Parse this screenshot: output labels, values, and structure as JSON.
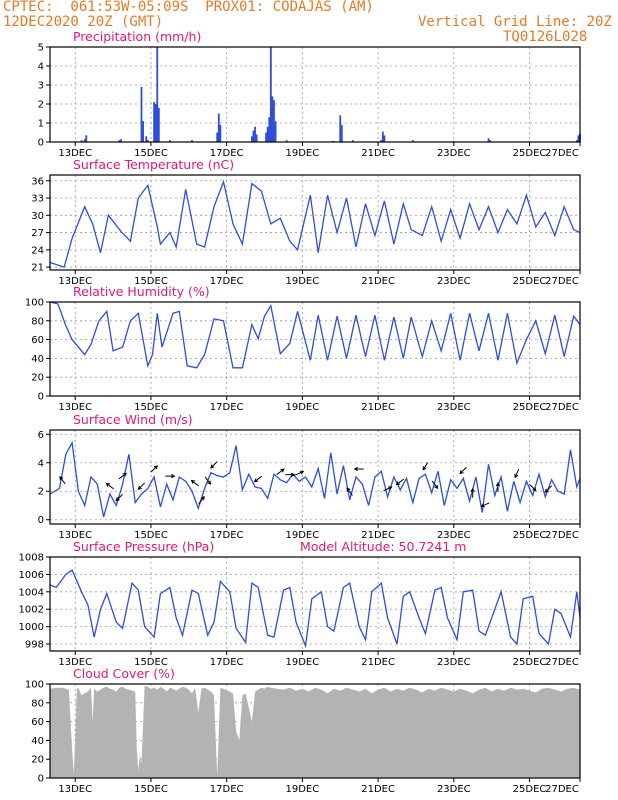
{
  "header": {
    "line1": "CPTEC:  061:53W-05:09S  PROX01: CODAJAS (AM)",
    "line2_left": "12DEC2020 20Z (GMT)",
    "line2_right": "Vertical Grid Line: 20Z",
    "line3_right": "TQ0126L028"
  },
  "colors": {
    "header": "#e37b26",
    "title": "#e0177c",
    "line": "#2f4ddb",
    "cloud": "#b3b3b3",
    "grid": "#9a9a9a"
  },
  "x_tick_labels": [
    "13DEC",
    "15DEC",
    "17DEC",
    "19DEC",
    "21DEC",
    "23DEC",
    "25DEC",
    "27DEC"
  ],
  "chart_data": [
    {
      "type": "bar",
      "title": "Precipitation (mm/h)",
      "x_unit": "hours from 12DEC2020 20Z",
      "ylim": [
        0,
        5
      ],
      "yticks": [
        0,
        1,
        2,
        3,
        4,
        5
      ],
      "bars": [
        {
          "x": 20,
          "y": 0.1
        },
        {
          "x": 22,
          "y": 0.15
        },
        {
          "x": 23,
          "y": 0.35
        },
        {
          "x": 44,
          "y": 0.1
        },
        {
          "x": 45,
          "y": 0.15
        },
        {
          "x": 58,
          "y": 2.9
        },
        {
          "x": 59,
          "y": 1.1
        },
        {
          "x": 61,
          "y": 0.3
        },
        {
          "x": 62,
          "y": 0.1
        },
        {
          "x": 66,
          "y": 2.1
        },
        {
          "x": 67,
          "y": 2.0
        },
        {
          "x": 68,
          "y": 5.0
        },
        {
          "x": 69,
          "y": 1.8
        },
        {
          "x": 76,
          "y": 0.1
        },
        {
          "x": 90,
          "y": 0.1
        },
        {
          "x": 106,
          "y": 0.5
        },
        {
          "x": 107,
          "y": 1.5
        },
        {
          "x": 108,
          "y": 0.9
        },
        {
          "x": 128,
          "y": 0.3
        },
        {
          "x": 129,
          "y": 0.6
        },
        {
          "x": 130,
          "y": 0.8
        },
        {
          "x": 131,
          "y": 0.4
        },
        {
          "x": 137,
          "y": 0.5
        },
        {
          "x": 138,
          "y": 0.8
        },
        {
          "x": 139,
          "y": 1.3
        },
        {
          "x": 140,
          "y": 5.0
        },
        {
          "x": 141,
          "y": 2.4
        },
        {
          "x": 142,
          "y": 2.2
        },
        {
          "x": 143,
          "y": 1.1
        },
        {
          "x": 150,
          "y": 0.1
        },
        {
          "x": 179,
          "y": 0.05
        },
        {
          "x": 180,
          "y": 0.05
        },
        {
          "x": 184,
          "y": 1.4
        },
        {
          "x": 185,
          "y": 0.9
        },
        {
          "x": 192,
          "y": 0.1
        },
        {
          "x": 210,
          "y": 0.1
        },
        {
          "x": 211,
          "y": 0.55
        },
        {
          "x": 212,
          "y": 0.35
        },
        {
          "x": 230,
          "y": 0.1
        },
        {
          "x": 256,
          "y": 0.05
        },
        {
          "x": 278,
          "y": 0.2
        },
        {
          "x": 279,
          "y": 0.1
        },
        {
          "x": 334,
          "y": 0.1
        },
        {
          "x": 335,
          "y": 0.35
        },
        {
          "x": 336,
          "y": 0.45
        }
      ]
    },
    {
      "type": "line",
      "title": "Surface Temperature (nC)",
      "ylim": [
        20.5,
        37
      ],
      "yticks": [
        21,
        24,
        27,
        30,
        33,
        36
      ],
      "x": [
        0,
        9,
        14,
        22,
        27,
        32,
        37,
        45,
        51,
        56,
        62,
        68,
        70,
        76,
        80,
        86,
        93,
        98,
        104,
        110,
        116,
        122,
        128,
        134,
        140,
        146,
        152,
        157,
        165,
        170,
        176,
        182,
        188,
        194,
        200,
        206,
        212,
        218,
        224,
        229,
        236,
        242,
        248,
        254,
        260,
        266,
        272,
        278,
        284,
        290,
        296,
        302,
        308,
        314,
        320,
        326,
        332,
        336
      ],
      "y": [
        21.8,
        21.0,
        26.0,
        31.5,
        28.5,
        23.5,
        30.0,
        27.2,
        25.5,
        33.0,
        35.2,
        28.0,
        25.0,
        27.0,
        24.5,
        34.5,
        25.0,
        24.5,
        31.5,
        35.8,
        28.5,
        25.0,
        35.5,
        34.2,
        28.5,
        29.5,
        25.5,
        24.0,
        33.5,
        23.5,
        33.5,
        27.0,
        33.0,
        24.5,
        32.0,
        26.5,
        32.5,
        25.0,
        32.0,
        27.5,
        26.5,
        31.5,
        25.5,
        31.0,
        26.0,
        32.0,
        27.5,
        31.5,
        27.0,
        31.0,
        28.5,
        33.5,
        28.0,
        30.5,
        26.5,
        31.5,
        27.5,
        27.0
      ]
    },
    {
      "type": "line",
      "title": "Relative Humidity (%)",
      "ylim": [
        0,
        100
      ],
      "yticks": [
        0,
        20,
        40,
        60,
        80,
        100
      ],
      "x": [
        0,
        5,
        10,
        14,
        22,
        26,
        31,
        36,
        40,
        46,
        51,
        56,
        62,
        65,
        68,
        71,
        78,
        82,
        87,
        93,
        98,
        104,
        110,
        116,
        122,
        128,
        132,
        136,
        140,
        146,
        152,
        157,
        165,
        170,
        176,
        182,
        188,
        194,
        200,
        206,
        212,
        218,
        224,
        229,
        236,
        242,
        248,
        254,
        260,
        266,
        272,
        278,
        284,
        290,
        296,
        302,
        308,
        314,
        320,
        326,
        332,
        336
      ],
      "y": [
        100,
        98,
        75,
        60,
        44,
        55,
        80,
        90,
        48,
        52,
        80,
        88,
        32,
        44,
        88,
        52,
        88,
        90,
        32,
        30,
        44,
        82,
        80,
        30,
        30,
        76,
        61,
        85,
        96,
        45,
        56,
        90,
        38,
        86,
        38,
        85,
        40,
        86,
        42,
        86,
        38,
        84,
        40,
        84,
        42,
        80,
        48,
        88,
        38,
        88,
        48,
        88,
        38,
        88,
        35,
        60,
        80,
        45,
        86,
        42,
        85,
        76
      ]
    },
    {
      "type": "line",
      "title": "Surface Wind (m/s)",
      "ylim": [
        -0.3,
        6.3
      ],
      "yticks": [
        0,
        2,
        4,
        6
      ],
      "x": [
        0,
        6,
        10,
        14,
        18,
        22,
        26,
        30,
        34,
        38,
        42,
        46,
        50,
        54,
        58,
        62,
        66,
        70,
        74,
        78,
        82,
        86,
        90,
        94,
        98,
        102,
        106,
        110,
        114,
        118,
        122,
        126,
        130,
        134,
        138,
        142,
        146,
        150,
        154,
        158,
        162,
        166,
        170,
        174,
        178,
        182,
        186,
        190,
        194,
        198,
        202,
        206,
        210,
        214,
        218,
        222,
        226,
        230,
        234,
        238,
        242,
        246,
        250,
        254,
        258,
        262,
        266,
        270,
        274,
        278,
        282,
        286,
        290,
        294,
        298,
        302,
        306,
        310,
        314,
        318,
        322,
        326,
        330,
        334,
        336
      ],
      "y": [
        1.8,
        2.2,
        4.6,
        5.4,
        2.0,
        1.0,
        3.0,
        2.5,
        0.2,
        1.8,
        1.0,
        2.5,
        4.6,
        1.2,
        1.8,
        2.2,
        3.0,
        0.9,
        2.5,
        1.4,
        3.0,
        2.7,
        2.0,
        0.8,
        2.2,
        3.3,
        3.1,
        3.0,
        3.3,
        5.2,
        2.1,
        3.2,
        2.3,
        2.2,
        1.5,
        3.2,
        2.8,
        2.6,
        3.2,
        2.7,
        3.0,
        2.3,
        3.6,
        1.5,
        4.7,
        1.8,
        3.8,
        1.4,
        3.0,
        2.5,
        1.0,
        3.0,
        3.4,
        1.6,
        3.0,
        2.1,
        2.9,
        1.2,
        2.9,
        3.2,
        1.9,
        3.4,
        1.0,
        2.8,
        2.2,
        2.9,
        1.3,
        3.0,
        0.5,
        3.9,
        1.7,
        3.0,
        0.6,
        2.7,
        1.2,
        2.7,
        1.7,
        3.2,
        1.6,
        2.8,
        2.0,
        1.8,
        4.9,
        2.3,
        2.9
      ],
      "arrows": [
        {
          "x": 8,
          "u": -0.6,
          "v": 0.8
        },
        {
          "x": 38,
          "u": -0.8,
          "v": 0.6
        },
        {
          "x": 44,
          "u": -0.7,
          "v": -0.7
        },
        {
          "x": 46,
          "u": 0.8,
          "v": 0.6
        },
        {
          "x": 58,
          "u": -0.7,
          "v": -0.7
        },
        {
          "x": 66,
          "u": 0.7,
          "v": 0.7
        },
        {
          "x": 76,
          "u": 1.0,
          "v": 0.0
        },
        {
          "x": 92,
          "u": -0.8,
          "v": 0.6
        },
        {
          "x": 96,
          "u": 0.6,
          "v": 0.8
        },
        {
          "x": 100,
          "u": 0.6,
          "v": -0.8
        },
        {
          "x": 104,
          "u": -0.7,
          "v": -0.7
        },
        {
          "x": 132,
          "u": -0.8,
          "v": -0.6
        },
        {
          "x": 146,
          "u": 0.8,
          "v": 0.6
        },
        {
          "x": 152,
          "u": 1.0,
          "v": 0.0
        },
        {
          "x": 158,
          "u": 0.9,
          "v": 0.4
        },
        {
          "x": 190,
          "u": -0.6,
          "v": 0.8
        },
        {
          "x": 196,
          "u": -1.0,
          "v": 0.0
        },
        {
          "x": 214,
          "u": 0.9,
          "v": 0.4
        },
        {
          "x": 222,
          "u": -0.8,
          "v": -0.6
        },
        {
          "x": 238,
          "u": -0.5,
          "v": -0.8
        },
        {
          "x": 244,
          "u": 0.6,
          "v": -0.8
        },
        {
          "x": 262,
          "u": -0.7,
          "v": -0.7
        },
        {
          "x": 268,
          "u": 0.0,
          "v": 1.0
        },
        {
          "x": 276,
          "u": -0.9,
          "v": -0.4
        },
        {
          "x": 284,
          "u": 0.0,
          "v": 1.0
        },
        {
          "x": 296,
          "u": -0.4,
          "v": -0.9
        },
        {
          "x": 306,
          "u": 0.7,
          "v": -0.7
        },
        {
          "x": 316,
          "u": -0.7,
          "v": -0.7
        }
      ]
    },
    {
      "type": "line",
      "title": "Surface Pressure (hPa)",
      "annotation": "Model Altitude: 50.7241 m",
      "ylim": [
        997.2,
        1008
      ],
      "yticks": [
        998,
        1000,
        1002,
        1004,
        1006,
        1008
      ],
      "x": [
        0,
        4,
        10,
        14,
        20,
        24,
        28,
        32,
        36,
        42,
        46,
        52,
        56,
        60,
        66,
        70,
        76,
        80,
        84,
        90,
        94,
        100,
        104,
        108,
        114,
        118,
        124,
        128,
        132,
        138,
        142,
        148,
        152,
        156,
        162,
        166,
        172,
        176,
        180,
        186,
        190,
        196,
        200,
        204,
        210,
        214,
        220,
        224,
        228,
        234,
        238,
        244,
        248,
        252,
        258,
        262,
        268,
        272,
        276,
        282,
        286,
        292,
        296,
        300,
        306,
        310,
        316,
        320,
        324,
        330,
        334,
        336
      ],
      "y": [
        1004.8,
        1004.5,
        1006.0,
        1006.5,
        1004.0,
        1002.5,
        998.8,
        1002.0,
        1003.8,
        1000.5,
        999.8,
        1005.0,
        1004.2,
        1000.0,
        998.8,
        1003.8,
        1004.5,
        1001.0,
        999.0,
        1004.2,
        1003.8,
        999.0,
        1000.5,
        1005.2,
        1004.0,
        999.8,
        998.2,
        1005.0,
        1004.5,
        999.0,
        998.8,
        1004.2,
        1004.5,
        1000.5,
        997.8,
        1003.2,
        1004.0,
        1000.0,
        999.5,
        1004.5,
        1005.0,
        1000.0,
        998.5,
        1004.0,
        1005.0,
        1001.0,
        998.0,
        1003.5,
        1004.0,
        1001.0,
        999.2,
        1004.2,
        1004.5,
        1001.0,
        998.5,
        1004.0,
        1004.2,
        999.5,
        999.0,
        1002.0,
        1004.0,
        998.8,
        998.0,
        1003.2,
        1003.5,
        999.2,
        998.0,
        1002.0,
        1001.5,
        998.8,
        1004.0,
        1001.0
      ]
    },
    {
      "type": "area",
      "title": "Cloud Cover (%)",
      "ylim": [
        0,
        100
      ],
      "yticks": [
        0,
        20,
        40,
        60,
        80,
        100
      ],
      "x": [
        0,
        4,
        8,
        12,
        14,
        15,
        16,
        17,
        18,
        20,
        24,
        26,
        27,
        28,
        30,
        32,
        34,
        36,
        38,
        40,
        42,
        44,
        46,
        48,
        50,
        52,
        54,
        55,
        56,
        57,
        58,
        60,
        62,
        64,
        66,
        68,
        70,
        72,
        74,
        76,
        78,
        80,
        84,
        86,
        88,
        90,
        92,
        94,
        96,
        98,
        100,
        102,
        104,
        106,
        108,
        110,
        112,
        114,
        116,
        118,
        120,
        122,
        124,
        126,
        128,
        130,
        132,
        134,
        136,
        138,
        140,
        144,
        148,
        152,
        156,
        160,
        164,
        168,
        172,
        176,
        180,
        184,
        188,
        192,
        196,
        200,
        204,
        208,
        212,
        216,
        220,
        224,
        228,
        232,
        236,
        240,
        244,
        248,
        252,
        256,
        260,
        264,
        268,
        272,
        276,
        280,
        284,
        288,
        292,
        296,
        300,
        304,
        308,
        312,
        316,
        320,
        324,
        328,
        332,
        336
      ],
      "y": [
        95,
        96,
        96,
        94,
        30,
        5,
        40,
        95,
        96,
        88,
        92,
        96,
        60,
        95,
        92,
        94,
        96,
        97,
        95,
        94,
        92,
        96,
        97,
        95,
        94,
        93,
        92,
        30,
        8,
        25,
        15,
        98,
        97,
        95,
        96,
        94,
        97,
        95,
        92,
        96,
        95,
        93,
        97,
        96,
        94,
        90,
        96,
        70,
        95,
        96,
        94,
        92,
        88,
        2,
        96,
        95,
        93,
        92,
        90,
        50,
        40,
        88,
        90,
        75,
        60,
        92,
        94,
        96,
        95,
        97,
        96,
        95,
        94,
        96,
        93,
        95,
        92,
        96,
        94,
        90,
        95,
        93,
        96,
        94,
        92,
        95,
        90,
        94,
        96,
        92,
        95,
        93,
        96,
        94,
        91,
        95,
        93,
        96,
        94,
        92,
        95,
        93,
        90,
        94,
        96,
        92,
        95,
        93,
        96,
        94,
        95,
        93,
        91,
        95,
        96,
        94,
        92,
        95,
        96,
        94
      ]
    }
  ]
}
